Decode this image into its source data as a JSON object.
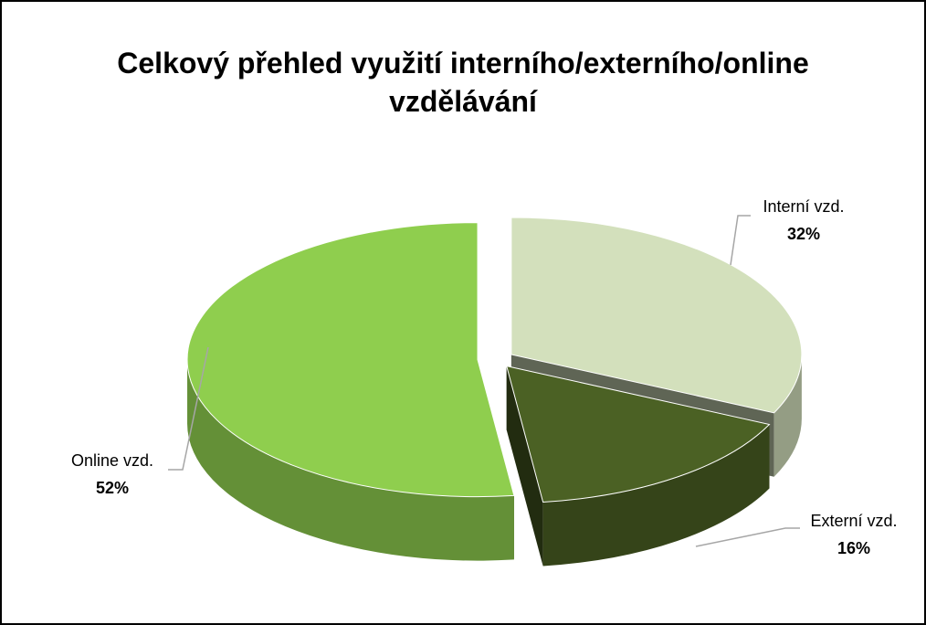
{
  "chart_data": {
    "type": "pie3d",
    "title": "Celkový přehled využití interního/externího/online vzdělávání",
    "categories": [
      "Interní vzd.",
      "Externí vzd.",
      "Online vzd."
    ],
    "values": [
      32,
      16,
      52
    ],
    "value_labels": [
      "32%",
      "16%",
      "52%"
    ],
    "colors": [
      "#d3e0bc",
      "#4b6124",
      "#8fce4e"
    ]
  }
}
